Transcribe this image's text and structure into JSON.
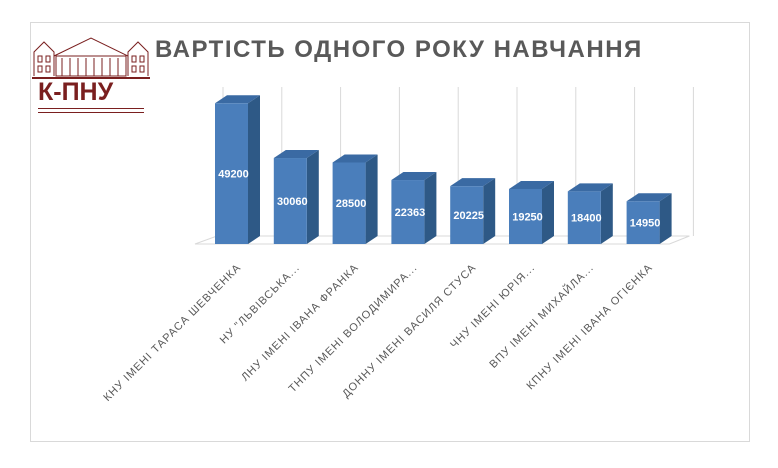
{
  "logo": {
    "text": "К-ПНУ"
  },
  "chart_data": {
    "type": "bar",
    "title": "ВАРТІСТЬ ОДНОГО РОКУ НАВЧАННЯ",
    "categories": [
      "КНУ ІМЕНІ ТАРАСА ШЕВЧЕНКА",
      "НУ \"ЛЬВІВСЬКА...",
      "ЛНУ ІМЕНІ ІВАНА ФРАНКА",
      "ТНПУ ІМЕНІ ВОЛОДИМИРА...",
      "ДОННУ ІМЕНІ ВАСИЛЯ СТУСА",
      "ЧНУ ІМЕНІ ЮРІЯ...",
      "ВПУ ІМЕНІ МИХАЙЛА...",
      "КПНУ ІМЕНІ ІВАНА ОГІЄНКА"
    ],
    "values": [
      49200,
      30060,
      28500,
      22363,
      20225,
      19250,
      18400,
      14950
    ],
    "ylim": [
      0,
      50000
    ],
    "grid": true,
    "legend": "none",
    "colors": {
      "front": "#4a7ebb",
      "side": "#2e5986",
      "top": "#3a6aa3",
      "grid": "#d9d9d9",
      "floor": "#d9d9d9"
    }
  }
}
